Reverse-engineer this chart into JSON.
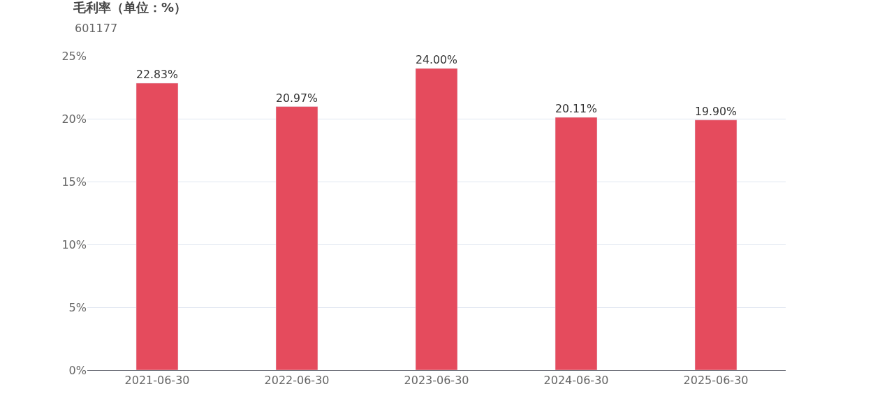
{
  "chart_data": {
    "type": "bar",
    "title": "毛利率（单位：%）",
    "subtitle": "601177",
    "categories": [
      "2021-06-30",
      "2022-06-30",
      "2023-06-30",
      "2024-06-30",
      "2025-06-30"
    ],
    "values": [
      22.83,
      20.97,
      24.0,
      20.11,
      19.9
    ],
    "value_labels": [
      "22.83%",
      "20.97%",
      "24.00%",
      "20.11%",
      "19.90%"
    ],
    "color": "#e54b5d",
    "ylim": [
      0,
      25
    ],
    "yticks": [
      {
        "value": 0,
        "label": "0%"
      },
      {
        "value": 5,
        "label": "5%"
      },
      {
        "value": 10,
        "label": "10%"
      },
      {
        "value": 15,
        "label": "15%"
      },
      {
        "value": 20,
        "label": "20%"
      },
      {
        "value": 25,
        "label": "25%"
      }
    ],
    "grid": "y",
    "legend": false
  }
}
